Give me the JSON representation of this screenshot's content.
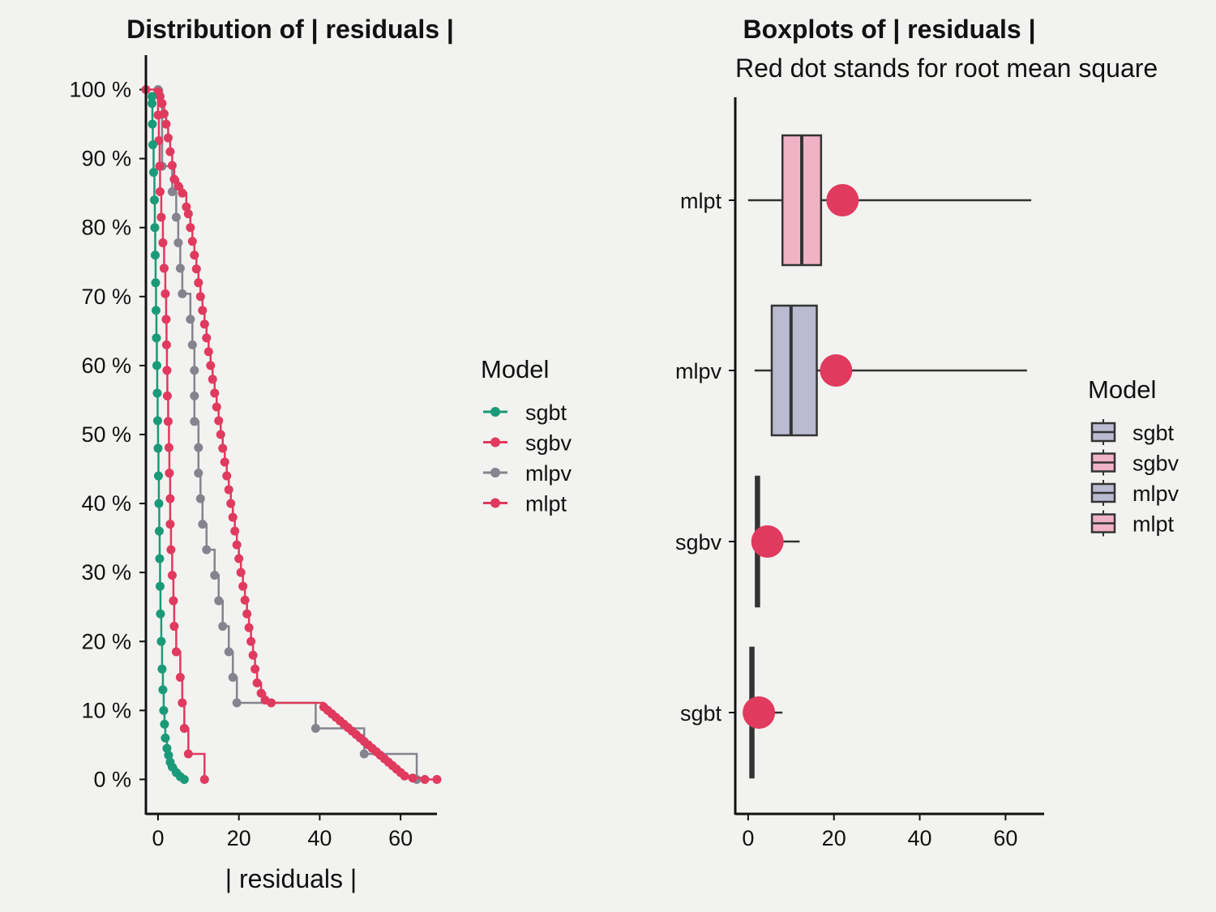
{
  "chart_data": [
    {
      "type": "line",
      "title": "Distribution of | residuals |",
      "xlabel": "| residuals |",
      "ylabel": "",
      "xlim": [
        -3,
        69
      ],
      "ylim": [
        -5,
        105
      ],
      "xticks": [
        0,
        20,
        40,
        60
      ],
      "yticks": [
        0,
        10,
        20,
        30,
        40,
        50,
        60,
        70,
        80,
        90,
        100
      ],
      "ytick_labels": [
        "0 %",
        "10 %",
        "20 %",
        "30 %",
        "40 %",
        "50 %",
        "60 %",
        "70 %",
        "80 %",
        "90 %",
        "100 %"
      ],
      "legend": {
        "title": "Model",
        "position": "right",
        "entries": [
          {
            "label": "sgbt",
            "color": "#1a9a78"
          },
          {
            "label": "sgbv",
            "color": "#e03a5f"
          },
          {
            "label": "mlpv",
            "color": "#84838e"
          },
          {
            "label": "mlpt",
            "color": "#e03a5f"
          }
        ]
      },
      "series": [
        {
          "name": "mlpv",
          "color": "#84838e",
          "points": [
            [
              0,
              100
            ],
            [
              1,
              88.9
            ],
            [
              3.5,
              85.2
            ],
            [
              4.5,
              81.5
            ],
            [
              5,
              77.8
            ],
            [
              5.5,
              74.1
            ],
            [
              6,
              70.4
            ],
            [
              8,
              66.7
            ],
            [
              8.5,
              63
            ],
            [
              9,
              59.3
            ],
            [
              9,
              55.6
            ],
            [
              9,
              51.9
            ],
            [
              10,
              48.1
            ],
            [
              10,
              44.4
            ],
            [
              10.5,
              40.7
            ],
            [
              11,
              37
            ],
            [
              12,
              33.3
            ],
            [
              14,
              29.6
            ],
            [
              15,
              25.9
            ],
            [
              16,
              22.2
            ],
            [
              17.5,
              18.5
            ],
            [
              18.5,
              14.8
            ],
            [
              19.5,
              11.1
            ],
            [
              39,
              7.4
            ],
            [
              51,
              3.7
            ],
            [
              64,
              0
            ]
          ]
        },
        {
          "name": "sgbv",
          "color": "#e03a5f",
          "points": [
            [
              -3,
              100
            ],
            [
              0,
              96.3
            ],
            [
              0.2,
              92.6
            ],
            [
              0.4,
              88.9
            ],
            [
              0.5,
              85.2
            ],
            [
              0.8,
              81.5
            ],
            [
              1.2,
              77.8
            ],
            [
              1.5,
              74.1
            ],
            [
              1.8,
              70.4
            ],
            [
              2,
              66.7
            ],
            [
              2.1,
              63
            ],
            [
              2.2,
              59.3
            ],
            [
              2.3,
              55.6
            ],
            [
              2.5,
              51.9
            ],
            [
              2.7,
              48.1
            ],
            [
              2.8,
              44.4
            ],
            [
              3,
              40.7
            ],
            [
              3,
              37
            ],
            [
              3.2,
              33.3
            ],
            [
              3.5,
              29.6
            ],
            [
              3.8,
              25.9
            ],
            [
              4,
              22.2
            ],
            [
              4.5,
              18.5
            ],
            [
              5.5,
              14.8
            ],
            [
              6,
              11.1
            ],
            [
              6.5,
              7.4
            ],
            [
              7.5,
              3.7
            ],
            [
              11.5,
              0
            ]
          ]
        },
        {
          "name": "mlpt",
          "color": "#e03a5f",
          "points": [
            [
              0,
              99.7
            ],
            [
              0.5,
              99
            ],
            [
              1,
              98
            ],
            [
              1.5,
              96.5
            ],
            [
              2,
              95
            ],
            [
              2.5,
              93
            ],
            [
              3,
              91
            ],
            [
              3.5,
              89
            ],
            [
              4,
              87
            ],
            [
              5,
              86
            ],
            [
              6,
              85
            ],
            [
              7,
              83
            ],
            [
              7.5,
              82
            ],
            [
              8,
              80
            ],
            [
              8.5,
              78
            ],
            [
              9,
              76
            ],
            [
              9.5,
              74
            ],
            [
              10,
              72
            ],
            [
              10.5,
              70
            ],
            [
              11,
              68
            ],
            [
              11.5,
              66
            ],
            [
              12,
              64
            ],
            [
              12.5,
              62
            ],
            [
              13,
              60
            ],
            [
              13.5,
              58
            ],
            [
              14,
              56
            ],
            [
              14.5,
              54
            ],
            [
              15,
              52
            ],
            [
              15.5,
              50
            ],
            [
              16,
              48
            ],
            [
              16.5,
              46
            ],
            [
              17,
              44
            ],
            [
              17.5,
              42
            ],
            [
              18,
              40
            ],
            [
              18.5,
              38
            ],
            [
              19,
              36
            ],
            [
              19.5,
              34
            ],
            [
              20,
              32
            ],
            [
              20.5,
              30
            ],
            [
              21,
              28
            ],
            [
              21.5,
              26
            ],
            [
              22,
              24
            ],
            [
              22.5,
              22
            ],
            [
              23,
              20
            ],
            [
              23.5,
              18
            ],
            [
              24,
              16
            ],
            [
              24.5,
              14
            ],
            [
              25.5,
              12.5
            ],
            [
              26.5,
              11.5
            ],
            [
              28,
              11.1
            ],
            [
              41,
              10.5
            ],
            [
              42,
              10
            ],
            [
              43,
              9.5
            ],
            [
              44,
              9
            ],
            [
              45,
              8.5
            ],
            [
              46,
              8
            ],
            [
              47,
              7.5
            ],
            [
              48,
              7
            ],
            [
              49,
              6.5
            ],
            [
              50,
              6
            ],
            [
              51,
              5.5
            ],
            [
              52,
              5
            ],
            [
              53,
              4.5
            ],
            [
              54,
              4
            ],
            [
              55,
              3.5
            ],
            [
              56,
              3
            ],
            [
              57,
              2.5
            ],
            [
              58,
              2
            ],
            [
              59,
              1.5
            ],
            [
              60,
              1
            ],
            [
              61,
              0.5
            ],
            [
              63,
              0.2
            ],
            [
              66,
              0
            ],
            [
              69,
              0
            ]
          ]
        },
        {
          "name": "sgbt",
          "color": "#1a9a78",
          "points": [
            [
              -1.5,
              99
            ],
            [
              -1.5,
              98
            ],
            [
              -1.4,
              95
            ],
            [
              -1.3,
              92
            ],
            [
              -1.1,
              88
            ],
            [
              -0.9,
              84
            ],
            [
              -0.8,
              80
            ],
            [
              -0.7,
              76
            ],
            [
              -0.6,
              72
            ],
            [
              -0.5,
              68
            ],
            [
              -0.4,
              64
            ],
            [
              -0.3,
              60
            ],
            [
              -0.2,
              56
            ],
            [
              -0.1,
              52
            ],
            [
              0,
              48
            ],
            [
              0.1,
              44
            ],
            [
              0.2,
              40
            ],
            [
              0.3,
              36
            ],
            [
              0.4,
              32
            ],
            [
              0.5,
              28
            ],
            [
              0.6,
              24
            ],
            [
              0.8,
              20
            ],
            [
              1,
              16
            ],
            [
              1.2,
              13
            ],
            [
              1.4,
              10
            ],
            [
              1.6,
              8
            ],
            [
              1.8,
              6
            ],
            [
              2.2,
              4.5
            ],
            [
              2.6,
              3.5
            ],
            [
              3,
              2.5
            ],
            [
              3.5,
              1.8
            ],
            [
              4.5,
              1
            ],
            [
              5.5,
              0.4
            ],
            [
              6.5,
              0
            ]
          ]
        }
      ]
    },
    {
      "type": "box",
      "title": "Boxplots of | residuals |",
      "subtitle": "Red dot stands for root mean square",
      "xlabel": "",
      "ylabel": "",
      "xlim": [
        -3,
        69
      ],
      "xticks": [
        0,
        20,
        40,
        60
      ],
      "categories": [
        "mlpt",
        "mlpv",
        "sgbv",
        "sgbt"
      ],
      "rms_color": "#e03a5f",
      "boxes": [
        {
          "label": "mlpt",
          "min": 0,
          "q1": 8,
          "median": 12.5,
          "q3": 17,
          "max": 66,
          "rms": 22,
          "color": "#f0b3c6"
        },
        {
          "label": "mlpv",
          "min": 1.5,
          "q1": 5.5,
          "median": 10,
          "q3": 16,
          "max": 65,
          "rms": 20.5,
          "color": "#babbd1"
        },
        {
          "label": "sgbv",
          "min": 1.5,
          "q1": 1.8,
          "median": 2,
          "q3": 2.5,
          "max": 12,
          "rms": 4.5,
          "color": "#f0b3c6"
        },
        {
          "label": "sgbt",
          "min": 0.3,
          "q1": 0.5,
          "median": 0.8,
          "q3": 1.2,
          "max": 8,
          "rms": 2.5,
          "color": "#babbd1"
        }
      ],
      "legend": {
        "title": "Model",
        "position": "right",
        "entries": [
          {
            "label": "sgbt",
            "color": "#babbd1"
          },
          {
            "label": "sgbv",
            "color": "#f0b3c6"
          },
          {
            "label": "mlpv",
            "color": "#babbd1"
          },
          {
            "label": "mlpt",
            "color": "#f0b3c6"
          }
        ]
      }
    }
  ]
}
